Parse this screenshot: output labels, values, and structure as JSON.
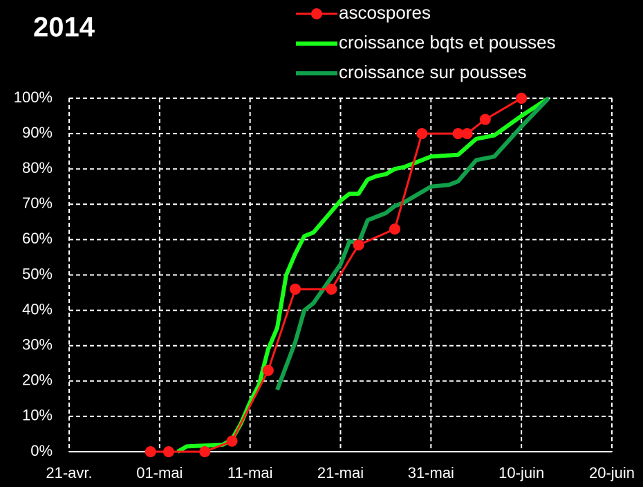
{
  "chart_data": {
    "type": "line",
    "title": "2014",
    "xlim": [
      "2014-04-21",
      "2014-06-20"
    ],
    "xticks": [
      {
        "value": "2014-04-21",
        "label": "21-avr."
      },
      {
        "value": "2014-05-01",
        "label": "01-mai"
      },
      {
        "value": "2014-05-11",
        "label": "11-mai"
      },
      {
        "value": "2014-05-21",
        "label": "21-mai"
      },
      {
        "value": "2014-05-31",
        "label": "31-mai"
      },
      {
        "value": "2014-06-10",
        "label": "10-juin"
      },
      {
        "value": "2014-06-20",
        "label": "20-juin"
      }
    ],
    "ylim": [
      0,
      100
    ],
    "yticks": [
      {
        "value": 0,
        "label": "0%"
      },
      {
        "value": 10,
        "label": "10%"
      },
      {
        "value": 20,
        "label": "20%"
      },
      {
        "value": 30,
        "label": "30%"
      },
      {
        "value": 40,
        "label": "40%"
      },
      {
        "value": 50,
        "label": "50%"
      },
      {
        "value": 60,
        "label": "60%"
      },
      {
        "value": 70,
        "label": "70%"
      },
      {
        "value": 80,
        "label": "80%"
      },
      {
        "value": 90,
        "label": "90%"
      },
      {
        "value": 100,
        "label": "100%"
      }
    ],
    "grid": true,
    "series": [
      {
        "name": "ascospores",
        "color": "#ff1a1a",
        "markers": true,
        "x": [
          "2014-04-30",
          "2014-05-02",
          "2014-05-06",
          "2014-05-09",
          "2014-05-13",
          "2014-05-16",
          "2014-05-20",
          "2014-05-23",
          "2014-05-27",
          "2014-05-30",
          "2014-06-03",
          "2014-06-04",
          "2014-06-06",
          "2014-06-10"
        ],
        "values": [
          0,
          0,
          0,
          3,
          23,
          46,
          46,
          58.5,
          63,
          90,
          90,
          90,
          94,
          100
        ]
      },
      {
        "name": "croissance bqts et pousses",
        "color": "#1aff1a",
        "markers": false,
        "x": [
          "2014-05-03",
          "2014-05-04",
          "2014-05-08",
          "2014-05-09",
          "2014-05-10",
          "2014-05-11",
          "2014-05-12",
          "2014-05-13",
          "2014-05-14",
          "2014-05-15",
          "2014-05-16",
          "2014-05-17",
          "2014-05-18",
          "2014-05-21",
          "2014-05-22",
          "2014-05-23",
          "2014-05-24",
          "2014-05-25",
          "2014-05-26",
          "2014-05-27",
          "2014-05-28",
          "2014-05-31",
          "2014-06-03",
          "2014-06-05",
          "2014-06-07",
          "2014-06-10",
          "2014-06-13"
        ],
        "values": [
          0,
          1.5,
          2,
          3.5,
          8,
          14,
          19,
          29,
          35,
          50,
          56,
          61,
          62,
          71,
          73,
          73,
          77,
          78,
          78.5,
          80,
          80.5,
          83.5,
          84,
          88.5,
          89.5,
          95,
          100
        ]
      },
      {
        "name": "croissance sur pousses",
        "color": "#12a04a",
        "markers": false,
        "x": [
          "2014-05-14",
          "2014-05-16",
          "2014-05-17",
          "2014-05-18",
          "2014-05-21",
          "2014-05-22",
          "2014-05-23",
          "2014-05-24",
          "2014-05-25",
          "2014-05-26",
          "2014-05-27",
          "2014-05-28",
          "2014-05-31",
          "2014-06-02",
          "2014-06-03",
          "2014-06-05",
          "2014-06-07",
          "2014-06-10",
          "2014-06-13"
        ],
        "values": [
          17.5,
          31,
          40,
          42,
          53,
          59.5,
          59,
          65.5,
          66.5,
          67.5,
          69.5,
          70.5,
          75,
          75.5,
          76.5,
          82.5,
          83.5,
          92,
          100
        ]
      }
    ]
  }
}
